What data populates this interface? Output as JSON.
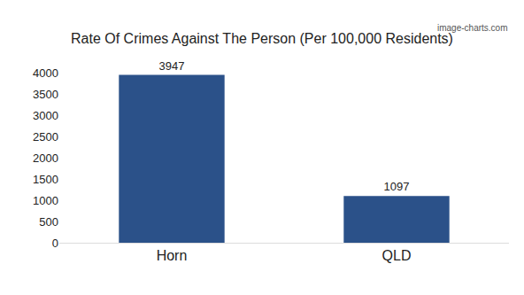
{
  "chart_data": {
    "type": "bar",
    "title": "Rate Of Crimes Against The Person (Per 100,000 Residents)",
    "annotation": "image-charts.com",
    "categories": [
      "Horn",
      "QLD"
    ],
    "values": [
      3947,
      1097
    ],
    "color": "#2b5189",
    "ylim": [
      0,
      4000
    ],
    "yticks": [
      0,
      500,
      1000,
      1500,
      2000,
      2500,
      3000,
      3500,
      4000
    ],
    "grid": false,
    "data_labels": true
  }
}
